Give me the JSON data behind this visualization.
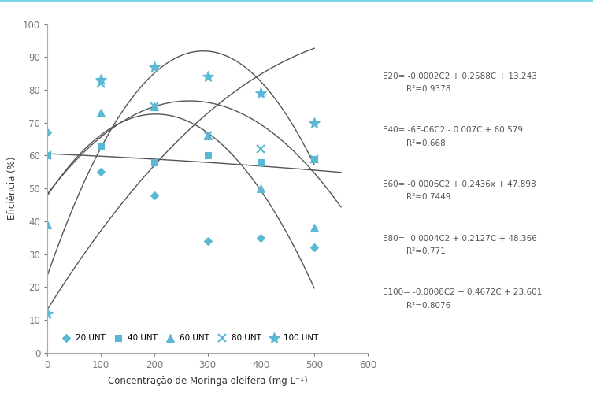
{
  "xlabel": "Concentração de Moringa oleifera (mg L⁻¹)",
  "ylabel": "Eficiência (%)",
  "xlim": [
    0,
    600
  ],
  "ylim": [
    0,
    100
  ],
  "xticks": [
    0,
    100,
    200,
    300,
    400,
    500,
    600
  ],
  "yticks": [
    0,
    10,
    20,
    30,
    40,
    50,
    60,
    70,
    80,
    90,
    100
  ],
  "scatter_color": "#5BB8D4",
  "scatter_color2": "#3A9FBF",
  "curve_color": "#555555",
  "series": {
    "E20": {
      "x": [
        0,
        100,
        200,
        300,
        400,
        500
      ],
      "y": [
        67,
        55,
        48,
        34,
        35,
        32
      ],
      "marker": "D",
      "label": "20 UNT",
      "a": -0.0002,
      "b": 0.2588,
      "c": 13.243,
      "x_end": 500
    },
    "E40": {
      "x": [
        0,
        100,
        200,
        300,
        400,
        500
      ],
      "y": [
        60,
        63,
        58,
        60,
        58,
        59
      ],
      "marker": "s",
      "label": "40 UNT",
      "a": -6e-06,
      "b": -0.007,
      "c": 60.579,
      "x_end": 550
    },
    "E60": {
      "x": [
        0,
        100,
        200,
        300,
        400,
        500
      ],
      "y": [
        39,
        73,
        75,
        66,
        50,
        38
      ],
      "marker": "^",
      "label": "60 UNT",
      "a": -0.0006,
      "b": 0.2436,
      "c": 47.898,
      "x_end": 500
    },
    "E80": {
      "x": [
        0,
        100,
        200,
        300,
        400,
        500
      ],
      "y": [
        60,
        82,
        75,
        66,
        62,
        59
      ],
      "marker": "x",
      "label": "80 UNT",
      "a": -0.0004,
      "b": 0.2127,
      "c": 48.366,
      "x_end": 550
    },
    "E100": {
      "x": [
        0,
        100,
        200,
        300,
        400,
        500
      ],
      "y": [
        12,
        83,
        87,
        84,
        79,
        70
      ],
      "marker": "*",
      "label": "100 UNT",
      "a": -0.0008,
      "b": 0.4672,
      "c": 23.601,
      "x_end": 500
    }
  },
  "equations": [
    [
      "E20= -0.0002C2 + 0.2588C + 13.243",
      "R²=0.9378"
    ],
    [
      "E40= -6E-06C2 - 0.007C + 60.579",
      "R²=0.668"
    ],
    [
      "E60= -0.0006C2 + 0.2436x + 47.898",
      "R²=0.7449"
    ],
    [
      "E80= -0.0004C2 + 0.2127C + 48.366",
      "R²=0.771"
    ],
    [
      "E100= -0.0008C2 + 0.4672C + 23.601",
      "R²=0.8076"
    ]
  ],
  "border_color": "#7DD4E8",
  "fig_bg": "#FFFFFF"
}
